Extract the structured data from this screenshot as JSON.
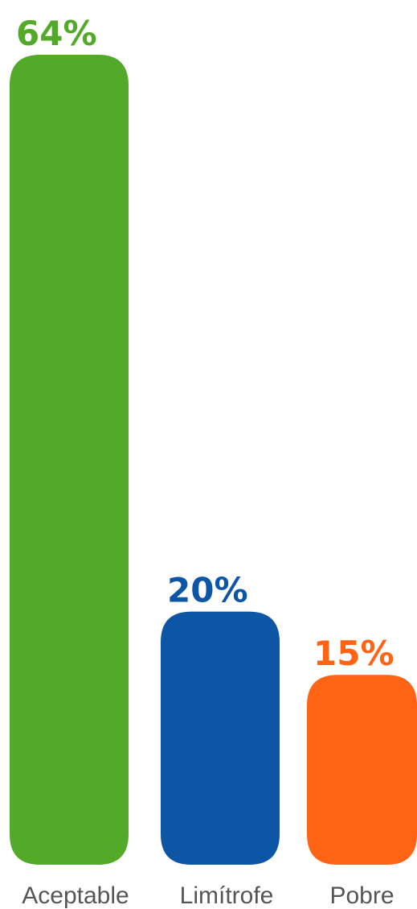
{
  "chart_data": {
    "type": "bar",
    "categories": [
      "Aceptable",
      "Limítrofe",
      "Pobre"
    ],
    "values": [
      64,
      20,
      15
    ],
    "value_labels": [
      "64%",
      "20%",
      "15%"
    ],
    "colors": [
      "#52aa28",
      "#0d56a6",
      "#ff6314"
    ],
    "ylim": [
      0,
      64
    ],
    "grid": false,
    "legend": "none"
  }
}
